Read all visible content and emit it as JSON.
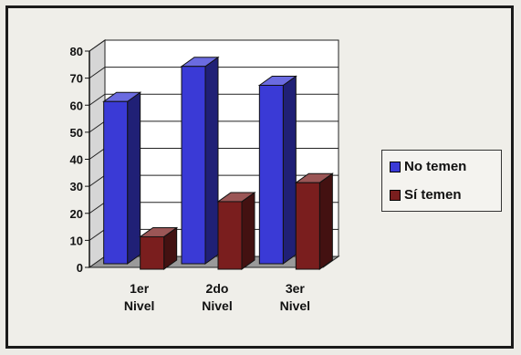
{
  "chart_data": {
    "type": "bar",
    "style": "3d-clustered-column",
    "categories": [
      [
        "1er",
        "Nivel"
      ],
      [
        "2do",
        "Nivel"
      ],
      [
        "3er",
        "Nivel"
      ]
    ],
    "series": [
      {
        "name": "No temen",
        "values": [
          60,
          73,
          66
        ],
        "color": "#3a3ad6"
      },
      {
        "name": "Sí temen",
        "values": [
          12,
          25,
          32
        ],
        "color": "#7a1e1e"
      }
    ],
    "ylim": [
      0,
      80
    ],
    "yticks": [
      "0",
      "10",
      "20",
      "30",
      "40",
      "50",
      "60",
      "70",
      "80"
    ],
    "grid": true,
    "legend_position": "right"
  }
}
